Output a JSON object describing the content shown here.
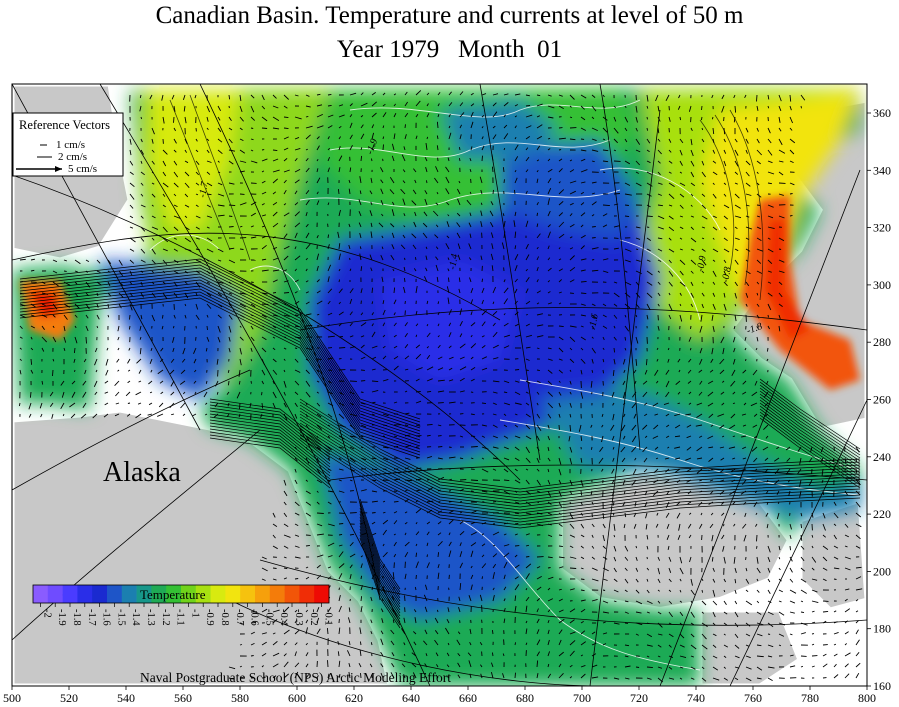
{
  "title_line1": "Canadian Basin. Temperature and currents at level of 50 m",
  "title_line2": "Year 1979   Month  01",
  "region_label": "Alaska",
  "credit": "Naval Postgraduate School (NPS) Arctic Modeling Effort",
  "reference_vectors": {
    "title": "Reference Vectors",
    "items": [
      {
        "label": "1 cm/s",
        "scale": 1
      },
      {
        "label": "2 cm/s",
        "scale": 2
      },
      {
        "label": "5 cm/s",
        "scale": 5
      }
    ]
  },
  "colorbar": {
    "title": "Temperature",
    "ticks": [
      "-2",
      "-1.9",
      "-1.8",
      "-1.7",
      "-1.6",
      "-1.5",
      "-1.4",
      "-1.3",
      "-1.2",
      "-1.1",
      "-1",
      "-0.9",
      "-0.8",
      "-0.7",
      "-0.6",
      "-0.5",
      "-0.4",
      "-0.3",
      "-0.2",
      "-0.1"
    ],
    "colors": [
      "#8a5cff",
      "#6f4cff",
      "#4a3cff",
      "#2a2ee8",
      "#1a2ad0",
      "#1e55c8",
      "#1b7fb0",
      "#17978a",
      "#1faa55",
      "#34c034",
      "#70d31a",
      "#a8e011",
      "#d8ea10",
      "#f2e40f",
      "#f6c20e",
      "#f6a00c",
      "#f47c0a",
      "#f25508",
      "#f02d06",
      "#ee0a04"
    ]
  },
  "x_axis": {
    "ticks": [
      "500",
      "520",
      "540",
      "560",
      "580",
      "600",
      "620",
      "640",
      "660",
      "680",
      "700",
      "720",
      "740",
      "760",
      "780",
      "800"
    ]
  },
  "y_axis": {
    "ticks": [
      "360",
      "340",
      "320",
      "300",
      "280",
      "260",
      "240",
      "220",
      "200",
      "180",
      "160"
    ]
  },
  "contour_labels": [
    "-1.9",
    "-0.9",
    "-0.8",
    "-1.8",
    "-1.7",
    "-1.4",
    "-1.6"
  ],
  "colors": {
    "land": "#c8c8c8",
    "background": "#ffffff",
    "cold": "#1a2ad0",
    "mid": "#34c034",
    "warm": "#f2e40f",
    "hot": "#ee0a04"
  }
}
